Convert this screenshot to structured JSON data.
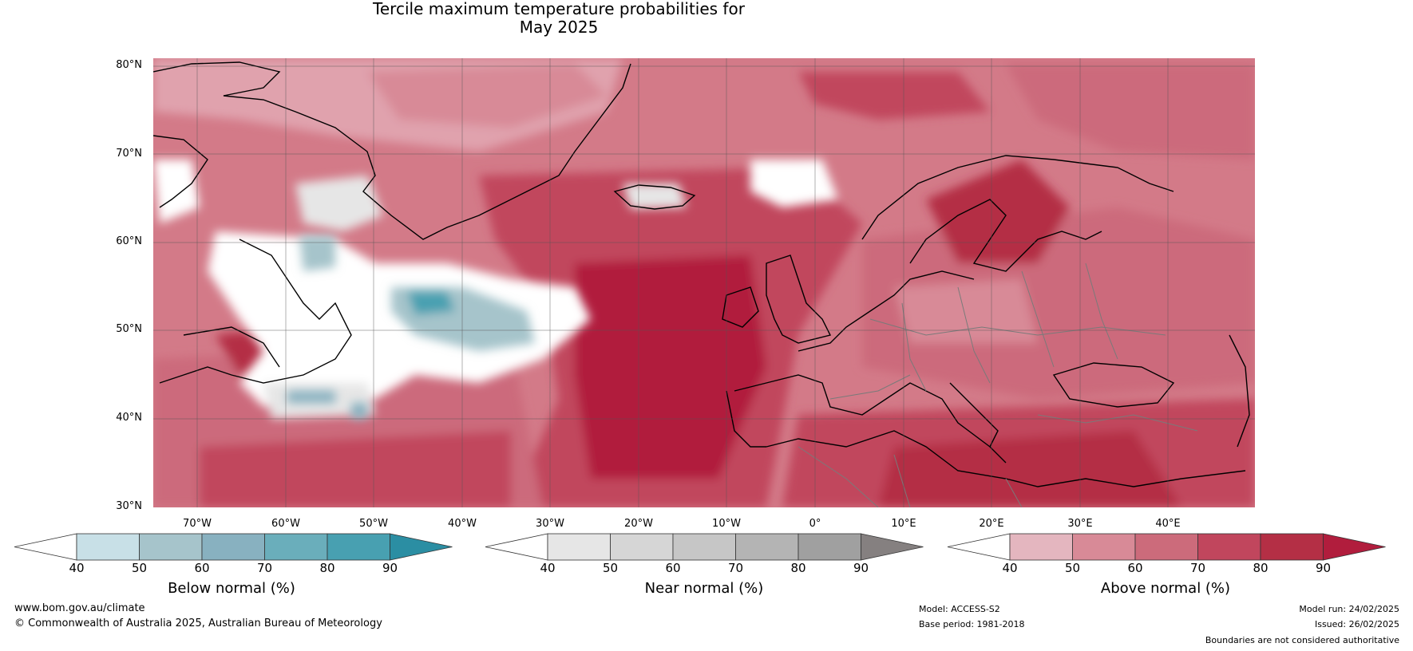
{
  "title_line1": "Tercile maximum temperature probabilities for",
  "title_line2": "May 2025",
  "lat_labels": [
    "80°N",
    "70°N",
    "60°N",
    "50°N",
    "40°N",
    "30°N"
  ],
  "lon_labels": [
    "70°W",
    "60°W",
    "50°W",
    "40°W",
    "30°W",
    "20°W",
    "10°W",
    "0°",
    "10°E",
    "20°E",
    "30°E",
    "40°E"
  ],
  "colorbars": [
    {
      "title": "Below normal (%)",
      "ticks": [
        "40",
        "50",
        "60",
        "70",
        "80",
        "90"
      ],
      "colors": [
        "#ffffff",
        "#c8e0e7",
        "#a6c4cb",
        "#88b1c0",
        "#6aaebb",
        "#48a0b1",
        "#2b8ea3"
      ]
    },
    {
      "title": "Near normal (%)",
      "ticks": [
        "40",
        "50",
        "60",
        "70",
        "80",
        "90"
      ],
      "colors": [
        "#ffffff",
        "#e6e6e6",
        "#d6d6d6",
        "#c6c6c6",
        "#b4b4b4",
        "#a0a0a0",
        "#858080"
      ]
    },
    {
      "title": "Above normal (%)",
      "ticks": [
        "40",
        "50",
        "60",
        "70",
        "80",
        "90"
      ],
      "colors": [
        "#ffffff",
        "#e4b6bf",
        "#d88a97",
        "#cc6b7b",
        "#c1465d",
        "#b42f45",
        "#b11d3d"
      ]
    }
  ],
  "footer": {
    "website": "www.bom.gov.au/climate",
    "copyright": "© Commonwealth of Australia 2025, Australian Bureau of Meteorology",
    "model": "Model: ACCESS-S2",
    "base_period": "Base period: 1981-2018",
    "model_run": "Model run: 24/02/2025",
    "issued": "Issued: 26/02/2025",
    "disclaimer": "Boundaries are not considered authoritative"
  }
}
